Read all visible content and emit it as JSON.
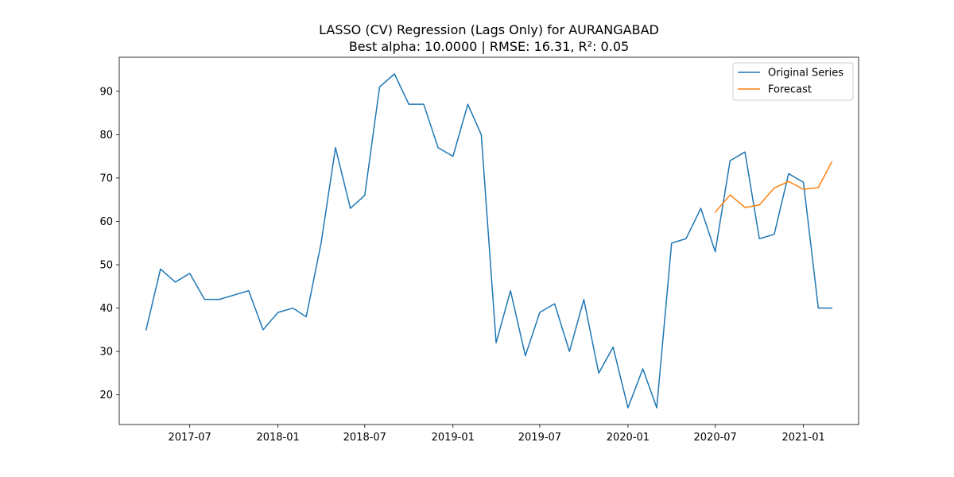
{
  "chart_data": {
    "type": "line",
    "title": "LASSO (CV) Regression (Lags Only) for AURANGABAD",
    "subtitle": "Best alpha: 10.0000 | RMSE: 16.31, R²: 0.05",
    "xlabel": "",
    "ylabel": "",
    "xlim": [
      "2017-02-04",
      "2021-04-26"
    ],
    "ylim": [
      13.15,
      97.85
    ],
    "x_ticks": [
      "2017-07",
      "2018-01",
      "2018-07",
      "2019-01",
      "2019-07",
      "2020-01",
      "2020-07",
      "2021-01"
    ],
    "y_ticks": [
      20,
      30,
      40,
      50,
      60,
      70,
      80,
      90
    ],
    "grid": false,
    "legend_position": "top-right",
    "series": [
      {
        "name": "Original Series",
        "color": "#1f77b4",
        "x": [
          "2017-04-01",
          "2017-05-01",
          "2017-06-01",
          "2017-07-01",
          "2017-08-01",
          "2017-09-01",
          "2017-10-01",
          "2017-11-01",
          "2017-12-01",
          "2018-01-01",
          "2018-02-01",
          "2018-03-01",
          "2018-04-01",
          "2018-05-01",
          "2018-06-01",
          "2018-07-01",
          "2018-08-01",
          "2018-09-01",
          "2018-10-01",
          "2018-11-01",
          "2018-12-01",
          "2019-01-01",
          "2019-02-01",
          "2019-03-01",
          "2019-04-01",
          "2019-05-01",
          "2019-06-01",
          "2019-07-01",
          "2019-08-01",
          "2019-09-01",
          "2019-10-01",
          "2019-11-01",
          "2019-12-01",
          "2020-01-01",
          "2020-02-01",
          "2020-03-01",
          "2020-04-01",
          "2020-05-01",
          "2020-06-01",
          "2020-07-01",
          "2020-08-01",
          "2020-09-01",
          "2020-10-01",
          "2020-11-01",
          "2020-12-01",
          "2021-01-01",
          "2021-02-01",
          "2021-03-01"
        ],
        "values": [
          35,
          49,
          46,
          48,
          42,
          42,
          43,
          44,
          35,
          39,
          40,
          38,
          55,
          77,
          63,
          66,
          91,
          94,
          87,
          87,
          77,
          75,
          87,
          80,
          32,
          44,
          29,
          39,
          41,
          30,
          42,
          25,
          31,
          17,
          26,
          17,
          55,
          56,
          63,
          53,
          74,
          76,
          56,
          57,
          71,
          69,
          40,
          40
        ]
      },
      {
        "name": "Forecast",
        "color": "#ff7f0e",
        "x": [
          "2020-07-01",
          "2020-08-01",
          "2020-09-01",
          "2020-10-01",
          "2020-11-01",
          "2020-12-01",
          "2021-01-01",
          "2021-02-01",
          "2021-03-01"
        ],
        "values": [
          62.1,
          66.1,
          63.2,
          63.8,
          67.7,
          69.2,
          67.4,
          67.8,
          73.7
        ]
      }
    ]
  }
}
